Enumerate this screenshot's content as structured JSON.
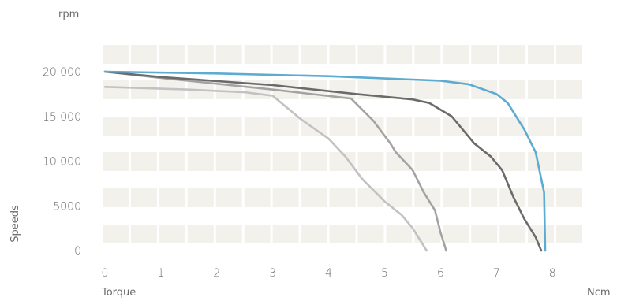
{
  "chart_data": {
    "type": "line",
    "title": "",
    "xlabel": "Torque",
    "x_unit": "Ncm",
    "ylabel": "Speeds",
    "y_unit": "rpm",
    "xlim": [
      0,
      8.5
    ],
    "ylim": [
      0,
      20000
    ],
    "x_ticks": [
      "0",
      "1",
      "2",
      "3",
      "4",
      "5",
      "6",
      "7",
      "8"
    ],
    "y_ticks": [
      "0",
      "5000",
      "10 000",
      "15 000",
      "20 000"
    ],
    "y_tick_values": [
      0,
      5000,
      10000,
      15000,
      20000
    ],
    "grid": true,
    "legend": "none",
    "colors": {
      "grid_band": "#f3f1ec",
      "text": "#6a6a6a"
    },
    "series": [
      {
        "color": "#5eabd1",
        "points": [
          [
            0,
            20000
          ],
          [
            2,
            19800
          ],
          [
            4,
            19500
          ],
          [
            6,
            19000
          ],
          [
            6.5,
            18600
          ],
          [
            7,
            17500
          ],
          [
            7.2,
            16500
          ],
          [
            7.5,
            13500
          ],
          [
            7.7,
            11000
          ],
          [
            7.85,
            6500
          ],
          [
            7.87,
            0
          ]
        ]
      },
      {
        "color": "#6b6b6b",
        "points": [
          [
            0,
            20000
          ],
          [
            1,
            19400
          ],
          [
            3,
            18500
          ],
          [
            4.5,
            17500
          ],
          [
            5.5,
            16900
          ],
          [
            5.8,
            16500
          ],
          [
            6.2,
            15000
          ],
          [
            6.4,
            13500
          ],
          [
            6.6,
            12000
          ],
          [
            6.9,
            10500
          ],
          [
            7.1,
            9000
          ],
          [
            7.3,
            6000
          ],
          [
            7.5,
            3500
          ],
          [
            7.7,
            1500
          ],
          [
            7.8,
            0
          ]
        ]
      },
      {
        "color": "#a3a3a3",
        "points": [
          [
            0,
            20000
          ],
          [
            1,
            19300
          ],
          [
            3,
            18000
          ],
          [
            4.4,
            17000
          ],
          [
            4.8,
            14500
          ],
          [
            5.1,
            12000
          ],
          [
            5.2,
            11000
          ],
          [
            5.5,
            9000
          ],
          [
            5.7,
            6500
          ],
          [
            5.9,
            4500
          ],
          [
            6.0,
            2000
          ],
          [
            6.1,
            0
          ]
        ]
      },
      {
        "color": "#c2c2c2",
        "points": [
          [
            0,
            18300
          ],
          [
            1.5,
            18000
          ],
          [
            2.5,
            17700
          ],
          [
            3,
            17300
          ],
          [
            3.5,
            14700
          ],
          [
            4,
            12500
          ],
          [
            4.3,
            10500
          ],
          [
            4.6,
            8000
          ],
          [
            5,
            5500
          ],
          [
            5.3,
            4000
          ],
          [
            5.5,
            2500
          ],
          [
            5.75,
            0
          ]
        ]
      }
    ]
  }
}
